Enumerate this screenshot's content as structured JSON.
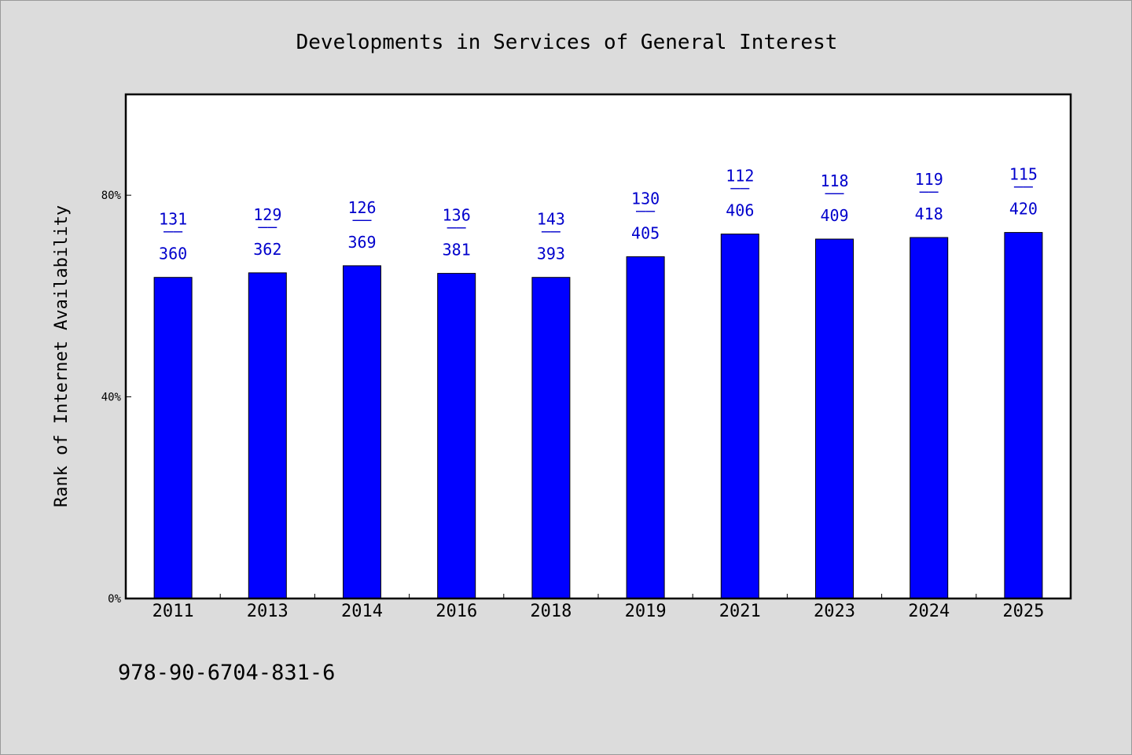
{
  "chart_data": {
    "type": "bar",
    "title": "Developments in Services of General Interest",
    "xlabel": "",
    "ylabel": "Rank of Internet Availability",
    "categories": [
      "2011",
      "2013",
      "2014",
      "2016",
      "2018",
      "2019",
      "2021",
      "2023",
      "2024",
      "2025"
    ],
    "values": [
      63.7,
      64.6,
      66.0,
      64.5,
      63.7,
      67.8,
      72.3,
      71.3,
      71.6,
      72.6
    ],
    "value_unit": "%",
    "bar_labels": [
      {
        "top": "131",
        "sep": "——",
        "bottom": "360"
      },
      {
        "top": "129",
        "sep": "——",
        "bottom": "362"
      },
      {
        "top": "126",
        "sep": "——",
        "bottom": "369"
      },
      {
        "top": "136",
        "sep": "——",
        "bottom": "381"
      },
      {
        "top": "143",
        "sep": "——",
        "bottom": "393"
      },
      {
        "top": "130",
        "sep": "——",
        "bottom": "405"
      },
      {
        "top": "112",
        "sep": "——",
        "bottom": "406"
      },
      {
        "top": "118",
        "sep": "——",
        "bottom": "409"
      },
      {
        "top": "119",
        "sep": "——",
        "bottom": "418"
      },
      {
        "top": "115",
        "sep": "——",
        "bottom": "420"
      }
    ],
    "ylim": [
      0,
      100
    ],
    "yticks": [
      0,
      40,
      80
    ],
    "ytick_labels": [
      "0%",
      "40%",
      "80%"
    ],
    "grid": false,
    "legend": "none",
    "colors": {
      "bar": "#0000ff",
      "bar_label": "#0000cc",
      "background": "#dcdcdc",
      "plot_background": "#ffffff"
    }
  },
  "footer": {
    "isbn": "978-90-6704-831-6"
  }
}
